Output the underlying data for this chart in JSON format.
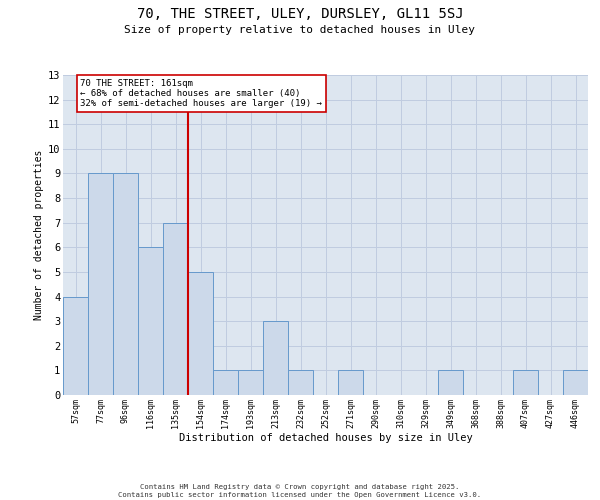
{
  "title": "70, THE STREET, ULEY, DURSLEY, GL11 5SJ",
  "subtitle": "Size of property relative to detached houses in Uley",
  "xlabel": "Distribution of detached houses by size in Uley",
  "ylabel": "Number of detached properties",
  "bin_labels": [
    "57sqm",
    "77sqm",
    "96sqm",
    "116sqm",
    "135sqm",
    "154sqm",
    "174sqm",
    "193sqm",
    "213sqm",
    "232sqm",
    "252sqm",
    "271sqm",
    "290sqm",
    "310sqm",
    "329sqm",
    "349sqm",
    "368sqm",
    "388sqm",
    "407sqm",
    "427sqm",
    "446sqm"
  ],
  "bar_values": [
    4,
    9,
    9,
    6,
    7,
    5,
    1,
    1,
    3,
    1,
    0,
    1,
    0,
    0,
    0,
    1,
    0,
    0,
    1,
    0,
    1
  ],
  "bar_color": "#ccd9ea",
  "bar_edge_color": "#6699cc",
  "ref_line_color": "#cc0000",
  "annotation_text": "70 THE STREET: 161sqm\n← 68% of detached houses are smaller (40)\n32% of semi-detached houses are larger (19) →",
  "annotation_box_color": "white",
  "annotation_box_edge": "#cc0000",
  "ylim": [
    0,
    13
  ],
  "yticks": [
    0,
    1,
    2,
    3,
    4,
    5,
    6,
    7,
    8,
    9,
    10,
    11,
    12,
    13
  ],
  "grid_color": "#c0cce0",
  "background_color": "#dde6f0",
  "footer_line1": "Contains HM Land Registry data © Crown copyright and database right 2025.",
  "footer_line2": "Contains public sector information licensed under the Open Government Licence v3.0."
}
